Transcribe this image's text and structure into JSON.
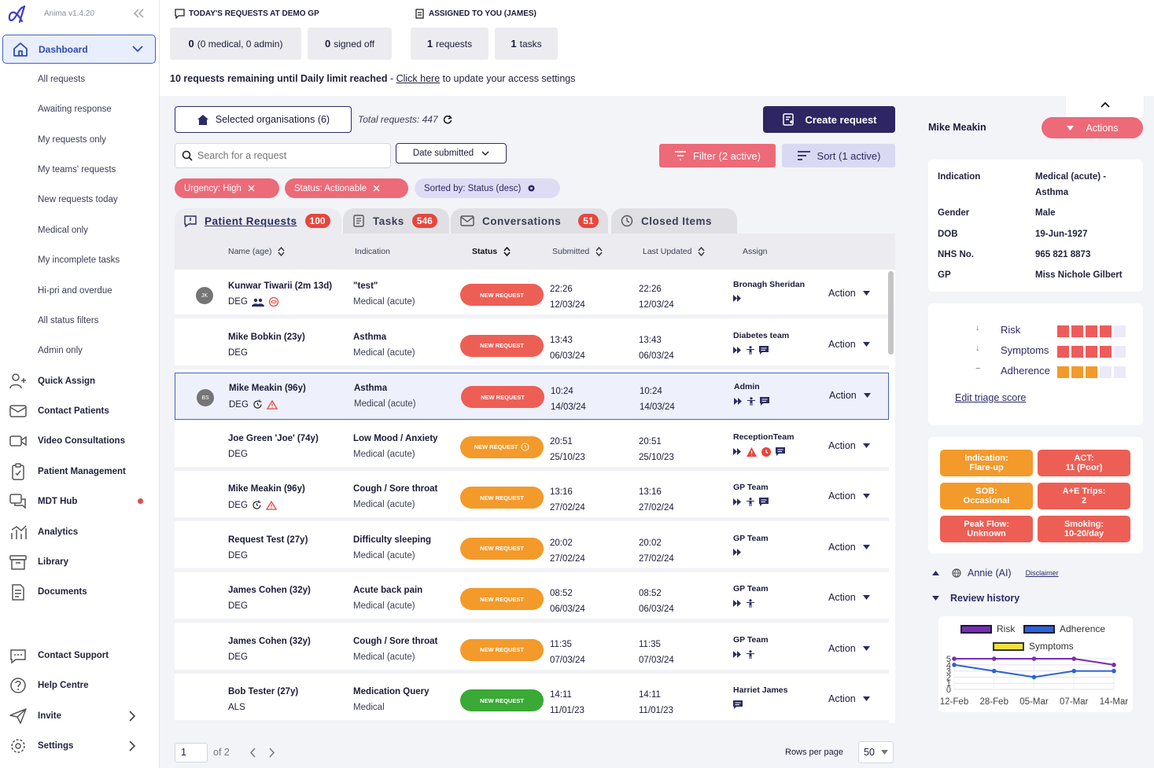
{
  "app": {
    "name": "Anima v1.4.20"
  },
  "sidebar": {
    "dashboard": "Dashboard",
    "sub_items": [
      "All requests",
      "Awaiting response",
      "My requests only",
      "My teams' requests",
      "New requests today",
      "Medical only",
      "My incomplete tasks",
      "Hi-pri and overdue",
      "All status filters",
      "Admin only"
    ],
    "nav": [
      {
        "label": "Quick Assign",
        "icon": "user-plus-icon"
      },
      {
        "label": "Contact Patients",
        "icon": "mail-icon"
      },
      {
        "label": "Video Consultations",
        "icon": "video-icon"
      },
      {
        "label": "Patient Management",
        "icon": "clipboard-icon"
      },
      {
        "label": "MDT Hub",
        "icon": "chat-bubbles-icon"
      },
      {
        "label": "Analytics",
        "icon": "analytics-icon"
      },
      {
        "label": "Library",
        "icon": "archive-icon"
      },
      {
        "label": "Documents",
        "icon": "document-icon"
      }
    ],
    "bottom": [
      {
        "label": "Contact Support",
        "icon": "support-chat-icon"
      },
      {
        "label": "Help Centre",
        "icon": "help-icon"
      },
      {
        "label": "Invite",
        "icon": "send-icon"
      },
      {
        "label": "Settings",
        "icon": "gear-icon"
      }
    ]
  },
  "top": {
    "today_title": "TODAY'S REQUESTS AT DEMO GP",
    "assigned_title": "ASSIGNED TO YOU (JAMES)",
    "stats": [
      {
        "num": "0",
        "text": "(0 medical, 0 admin)"
      },
      {
        "num": "0",
        "text": "signed off"
      },
      {
        "num": "1",
        "text": "requests"
      },
      {
        "num": "1",
        "text": "tasks"
      }
    ],
    "limit_text": "10 requests remaining until Daily limit reached",
    "limit_sep": " - ",
    "limit_link": "Click here",
    "limit_suffix": " to update your access settings"
  },
  "toolbar": {
    "orgs": "Selected organisations (6)",
    "total": "Total requests: 447",
    "create": "Create request",
    "search_placeholder": "Search for a request",
    "date_sel": "Date submitted",
    "filter": "Filter (2 active)",
    "sort": "Sort (1 active)"
  },
  "chips": [
    "Urgency: High",
    "Status: Actionable",
    "Sorted by: Status (desc)"
  ],
  "tabs": [
    {
      "label": "Patient Requests",
      "count": "100"
    },
    {
      "label": "Tasks",
      "count": "546"
    },
    {
      "label": "Conversations",
      "count": "51"
    },
    {
      "label": "Closed Items",
      "count": ""
    }
  ],
  "columns": [
    "Name (age)",
    "Indication",
    "Status",
    "Submitted",
    "Last Updated",
    "Assign"
  ],
  "rows": [
    {
      "avatar": "JK",
      "name": "Kunwar Tiwarii (2m 13d)",
      "code": "DEG",
      "ind": "\"test\"",
      "ind2": "Medical (acute)",
      "status": "NEW REQUEST",
      "color": "#ed5f55",
      "sub_t": "22:26",
      "sub_d": "12/03/24",
      "upd_t": "22:26",
      "upd_d": "12/03/24",
      "assign": "Bronagh Sheridan",
      "action": "Action"
    },
    {
      "avatar": "",
      "name": "Mike Bobkin (23y)",
      "code": "DEG",
      "ind": "Asthma",
      "ind2": "Medical (acute)",
      "status": "NEW REQUEST",
      "color": "#ed5f55",
      "sub_t": "13:43",
      "sub_d": "06/03/24",
      "upd_t": "13:43",
      "upd_d": "06/03/24",
      "assign": "Diabetes team",
      "action": "Action"
    },
    {
      "avatar": "BS",
      "name": "Mike Meakin (96y)",
      "code": "DEG",
      "ind": "Asthma",
      "ind2": "Medical (acute)",
      "status": "NEW REQUEST",
      "color": "#ed5f55",
      "sub_t": "10:24",
      "sub_d": "14/03/24",
      "upd_t": "10:24",
      "upd_d": "14/03/24",
      "assign": "Admin",
      "action": "Action"
    },
    {
      "avatar": "",
      "name": "Joe Green 'Joe' (74y)",
      "code": "DEG",
      "ind": "Low Mood / Anxiety",
      "ind2": "Medical (acute)",
      "status": "NEW REQUEST",
      "color": "#f39a2b",
      "sub_t": "20:51",
      "sub_d": "25/10/23",
      "upd_t": "20:51",
      "upd_d": "25/10/23",
      "assign": "ReceptionTeam",
      "action": "Action"
    },
    {
      "avatar": "",
      "name": "Mike Meakin (96y)",
      "code": "DEG",
      "ind": "Cough / Sore throat",
      "ind2": "Medical (acute)",
      "status": "NEW REQUEST",
      "color": "#f39a2b",
      "sub_t": "13:16",
      "sub_d": "27/02/24",
      "upd_t": "13:16",
      "upd_d": "27/02/24",
      "assign": "GP Team",
      "action": "Action"
    },
    {
      "avatar": "",
      "name": "Request Test (27y)",
      "code": "DEG",
      "ind": "Difficulty sleeping",
      "ind2": "Medical (acute)",
      "status": "NEW REQUEST",
      "color": "#f39a2b",
      "sub_t": "20:02",
      "sub_d": "27/02/24",
      "upd_t": "20:02",
      "upd_d": "27/02/24",
      "assign": "GP Team",
      "action": "Action"
    },
    {
      "avatar": "",
      "name": "James Cohen (32y)",
      "code": "DEG",
      "ind": "Acute back pain",
      "ind2": "Medical (acute)",
      "status": "NEW REQUEST",
      "color": "#f39a2b",
      "sub_t": "08:52",
      "sub_d": "06/03/24",
      "upd_t": "08:52",
      "upd_d": "06/03/24",
      "assign": "GP Team",
      "action": "Action"
    },
    {
      "avatar": "",
      "name": "James Cohen (32y)",
      "code": "DEG",
      "ind": "Cough / Sore throat",
      "ind2": "Medical (acute)",
      "status": "NEW REQUEST",
      "color": "#f39a2b",
      "sub_t": "11:35",
      "sub_d": "07/03/24",
      "upd_t": "11:35",
      "upd_d": "07/03/24",
      "assign": "GP Team",
      "action": "Action"
    },
    {
      "avatar": "",
      "name": "Bob Tester (27y)",
      "code": "ALS",
      "ind": "Medication Query",
      "ind2": "Medical",
      "status": "NEW REQUEST",
      "color": "#3aa935",
      "sub_t": "14:11",
      "sub_d": "11/01/23",
      "upd_t": "14:11",
      "upd_d": "11/01/23",
      "assign": "Harriet James",
      "action": "Action"
    }
  ],
  "pagination": {
    "page": "1",
    "of": "of 2",
    "rows_label": "Rows per page",
    "rows_value": "50"
  },
  "patient": {
    "name": "Mike Meakin",
    "actions": "Actions",
    "details": [
      {
        "k": "Indication",
        "v": "Medical (acute) - Asthma"
      },
      {
        "k": "Gender",
        "v": "Male"
      },
      {
        "k": "DOB",
        "v": "19-Jun-1927"
      },
      {
        "k": "NHS No.",
        "v": "965 821 8873"
      },
      {
        "k": "GP",
        "v": "Miss Nichole Gilbert"
      }
    ],
    "triage": [
      {
        "label": "Risk",
        "arrow": "↓",
        "filled": 4,
        "color": "#ee5b5b"
      },
      {
        "label": "Symptoms",
        "arrow": "↓",
        "filled": 4,
        "color": "#ee5b5b"
      },
      {
        "label": "Adherence",
        "arrow": "−",
        "filled": 3,
        "color": "#f39a2b"
      }
    ],
    "edit_triage": "Edit triage score",
    "tags": [
      {
        "line1": "Indication:",
        "line2": "Flare-up",
        "color": "#f39a2b"
      },
      {
        "line1": "ACT:",
        "line2": "11 (Poor)",
        "color": "#ed5f55"
      },
      {
        "line1": "SOB:",
        "line2": "Occasional",
        "color": "#f39a2b"
      },
      {
        "line1": "A+E Trips:",
        "line2": "2",
        "color": "#ed5f55"
      },
      {
        "line1": "Peak Flow:",
        "line2": "Unknown",
        "color": "#ed5f55"
      },
      {
        "line1": "Smoking:",
        "line2": "10-20/day",
        "color": "#ed5f55"
      }
    ],
    "annie": "Annie (AI)",
    "disclaimer": "Disclaimer",
    "review": "Review history"
  },
  "chart_data": {
    "type": "line",
    "categories": [
      "12-Feb",
      "28-Feb",
      "05-Mar",
      "07-Mar",
      "14-Mar"
    ],
    "ylim": [
      0,
      5
    ],
    "yticks": [
      "0",
      "1",
      "2",
      "3",
      "4",
      "5"
    ],
    "series": [
      {
        "name": "Risk",
        "color": "#7a2cb5",
        "values": [
          5,
          5,
          5,
          5,
          4
        ]
      },
      {
        "name": "Adherence",
        "color": "#2e62d8",
        "values": [
          4,
          3,
          2,
          3,
          3
        ]
      },
      {
        "name": "Symptoms",
        "color": "#f1e23a",
        "values": [
          5,
          5,
          5,
          5,
          4
        ]
      }
    ]
  }
}
